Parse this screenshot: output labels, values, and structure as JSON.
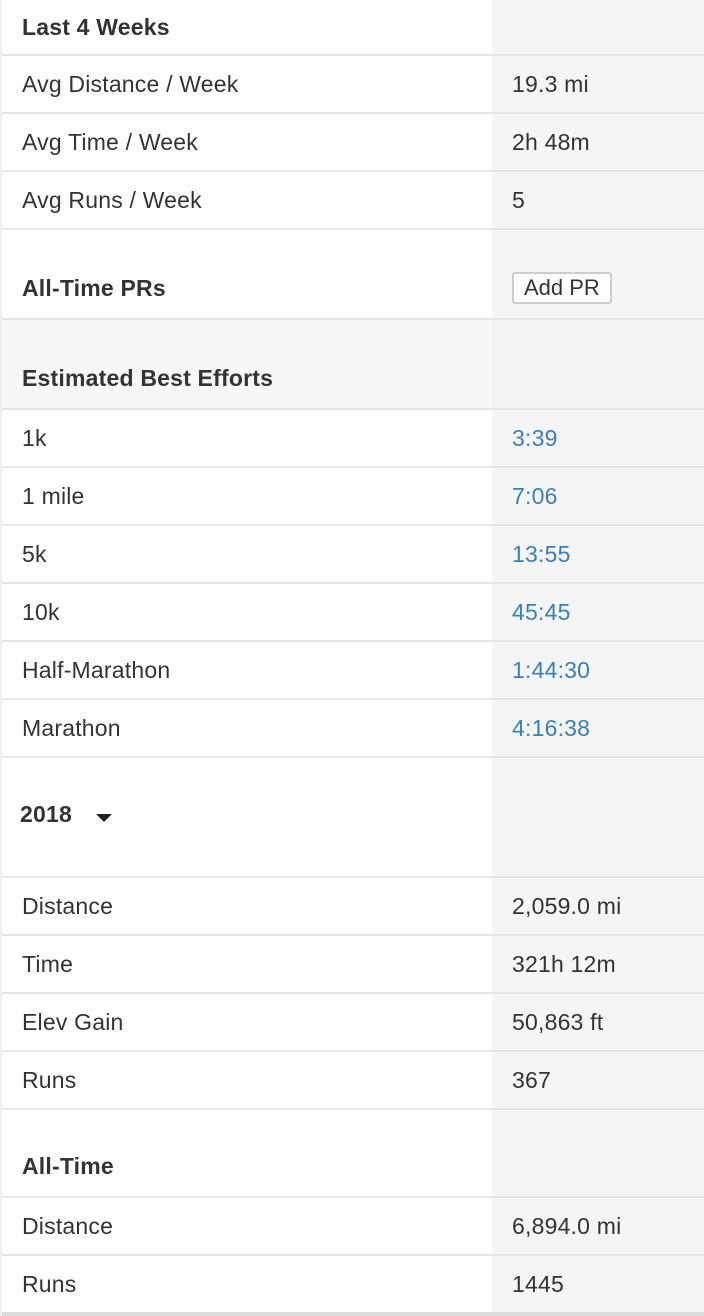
{
  "last4weeks": {
    "title": "Last 4 Weeks",
    "rows": [
      {
        "label": "Avg Distance / Week",
        "value": "19.3 mi"
      },
      {
        "label": "Avg Time / Week",
        "value": "2h 48m"
      },
      {
        "label": "Avg Runs / Week",
        "value": "5"
      }
    ]
  },
  "prs": {
    "title": "All-Time PRs",
    "button_label": "Add PR"
  },
  "best_efforts": {
    "title": "Estimated Best Efforts",
    "rows": [
      {
        "label": "1k",
        "value": "3:39"
      },
      {
        "label": "1 mile",
        "value": "7:06"
      },
      {
        "label": "5k",
        "value": "13:55"
      },
      {
        "label": "10k",
        "value": "45:45"
      },
      {
        "label": "Half-Marathon",
        "value": "1:44:30"
      },
      {
        "label": "Marathon",
        "value": "4:16:38"
      }
    ]
  },
  "year": {
    "selected": "2018",
    "rows": [
      {
        "label": "Distance",
        "value": "2,059.0 mi"
      },
      {
        "label": "Time",
        "value": "321h 12m"
      },
      {
        "label": "Elev Gain",
        "value": "50,863 ft"
      },
      {
        "label": "Runs",
        "value": "367"
      }
    ]
  },
  "alltime": {
    "title": "All-Time",
    "rows": [
      {
        "label": "Distance",
        "value": "6,894.0 mi"
      },
      {
        "label": "Runs",
        "value": "1445"
      }
    ]
  },
  "colors": {
    "link": "#3a7fb5",
    "value_column_bg": "#f5f5f5"
  }
}
